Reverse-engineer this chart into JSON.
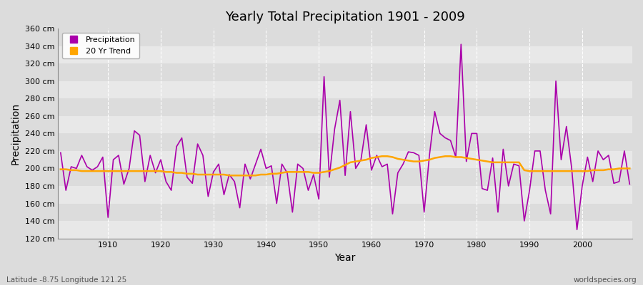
{
  "title": "Yearly Total Precipitation 1901 - 2009",
  "xlabel": "Year",
  "ylabel": "Precipitation",
  "subtitle": "Latitude -8.75 Longitude 121.25",
  "credit": "worldspecies.org",
  "ylim": [
    120,
    360
  ],
  "ytick_step": 20,
  "precip_color": "#AA00AA",
  "trend_color": "#FFA500",
  "bg_color": "#DCDCDC",
  "plot_bg_color": "#E8E8E8",
  "band_color_light": "#E8E8E8",
  "band_color_dark": "#DCDCDC",
  "years": [
    1901,
    1902,
    1903,
    1904,
    1905,
    1906,
    1907,
    1908,
    1909,
    1910,
    1911,
    1912,
    1913,
    1914,
    1915,
    1916,
    1917,
    1918,
    1919,
    1920,
    1921,
    1922,
    1923,
    1924,
    1925,
    1926,
    1927,
    1928,
    1929,
    1930,
    1931,
    1932,
    1933,
    1934,
    1935,
    1936,
    1937,
    1938,
    1939,
    1940,
    1941,
    1942,
    1943,
    1944,
    1945,
    1946,
    1947,
    1948,
    1949,
    1950,
    1951,
    1952,
    1953,
    1954,
    1955,
    1956,
    1957,
    1958,
    1959,
    1960,
    1961,
    1962,
    1963,
    1964,
    1965,
    1966,
    1967,
    1968,
    1969,
    1970,
    1971,
    1972,
    1973,
    1974,
    1975,
    1976,
    1977,
    1978,
    1979,
    1980,
    1981,
    1982,
    1983,
    1984,
    1985,
    1986,
    1987,
    1988,
    1989,
    1990,
    1991,
    1992,
    1993,
    1994,
    1995,
    1996,
    1997,
    1998,
    1999,
    2000,
    2001,
    2002,
    2003,
    2004,
    2005,
    2006,
    2007,
    2008,
    2009
  ],
  "precip": [
    218,
    175,
    202,
    200,
    215,
    202,
    198,
    202,
    213,
    144,
    210,
    215,
    182,
    200,
    243,
    238,
    185,
    215,
    195,
    210,
    185,
    175,
    225,
    235,
    190,
    183,
    228,
    215,
    168,
    196,
    205,
    170,
    193,
    185,
    155,
    205,
    188,
    205,
    222,
    200,
    203,
    160,
    205,
    195,
    150,
    205,
    200,
    175,
    193,
    165,
    305,
    190,
    245,
    278,
    192,
    265,
    200,
    210,
    250,
    198,
    215,
    202,
    205,
    148,
    195,
    205,
    219,
    218,
    215,
    150,
    215,
    265,
    240,
    235,
    232,
    213,
    342,
    208,
    240,
    240,
    177,
    175,
    212,
    150,
    222,
    180,
    205,
    203,
    140,
    175,
    220,
    220,
    175,
    148,
    300,
    210,
    248,
    200,
    130,
    180,
    213,
    185,
    220,
    210,
    215,
    183,
    185,
    220,
    182
  ],
  "trend": [
    199,
    199,
    198,
    198,
    197,
    197,
    197,
    197,
    197,
    197,
    197,
    197,
    197,
    197,
    197,
    197,
    197,
    197,
    197,
    197,
    196,
    196,
    195,
    195,
    194,
    194,
    193,
    193,
    193,
    193,
    193,
    193,
    192,
    192,
    192,
    192,
    192,
    192,
    193,
    193,
    194,
    194,
    195,
    196,
    196,
    196,
    196,
    196,
    195,
    195,
    196,
    197,
    199,
    201,
    204,
    207,
    208,
    209,
    210,
    212,
    213,
    214,
    214,
    213,
    211,
    210,
    209,
    208,
    208,
    209,
    210,
    212,
    213,
    214,
    214,
    213,
    213,
    212,
    211,
    210,
    209,
    208,
    207,
    207,
    207,
    207,
    207,
    207,
    198,
    197,
    197,
    197,
    197,
    197,
    197,
    197,
    197,
    197,
    197,
    197,
    197,
    198,
    198,
    198,
    199,
    199,
    200,
    200,
    200
  ]
}
